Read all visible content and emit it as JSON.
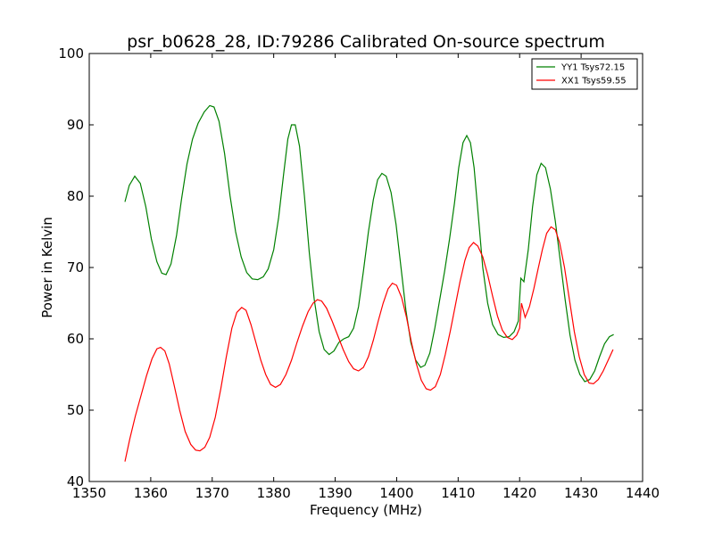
{
  "chart_data": {
    "type": "line",
    "title": "psr_b0628_28, ID:79286 Calibrated On-source spectrum",
    "xlabel": "Frequency (MHz)",
    "ylabel": "Power in Kelvin",
    "xlim": [
      1350,
      1440
    ],
    "ylim": [
      40,
      100
    ],
    "xticks": [
      "1350",
      "1360",
      "1370",
      "1380",
      "1390",
      "1400",
      "1410",
      "1420",
      "1430",
      "1440"
    ],
    "yticks": [
      "40",
      "50",
      "60",
      "70",
      "80",
      "90",
      "100"
    ],
    "grid": false,
    "legend_position": "top-right",
    "series": [
      {
        "name": "YY1 Tsys72.15",
        "color": "#008000",
        "points": [
          [
            1355.8,
            79.2
          ],
          [
            1356.5,
            81.5
          ],
          [
            1357.4,
            82.8
          ],
          [
            1358.3,
            81.8
          ],
          [
            1359.2,
            78.5
          ],
          [
            1360.1,
            74.0
          ],
          [
            1361.0,
            70.8
          ],
          [
            1361.8,
            69.2
          ],
          [
            1362.5,
            69.0
          ],
          [
            1363.3,
            70.5
          ],
          [
            1364.2,
            74.5
          ],
          [
            1365.0,
            79.5
          ],
          [
            1365.9,
            84.5
          ],
          [
            1366.8,
            88.0
          ],
          [
            1367.7,
            90.2
          ],
          [
            1368.7,
            91.8
          ],
          [
            1369.6,
            92.7
          ],
          [
            1370.3,
            92.5
          ],
          [
            1371.1,
            90.5
          ],
          [
            1372.0,
            86.0
          ],
          [
            1372.9,
            80.0
          ],
          [
            1373.8,
            75.0
          ],
          [
            1374.7,
            71.5
          ],
          [
            1375.6,
            69.3
          ],
          [
            1376.5,
            68.4
          ],
          [
            1377.4,
            68.3
          ],
          [
            1378.3,
            68.7
          ],
          [
            1379.1,
            69.8
          ],
          [
            1380.0,
            72.5
          ],
          [
            1380.8,
            77.0
          ],
          [
            1381.6,
            83.0
          ],
          [
            1382.3,
            88.0
          ],
          [
            1382.9,
            90.0
          ],
          [
            1383.5,
            90.0
          ],
          [
            1384.2,
            87.0
          ],
          [
            1385.0,
            80.0
          ],
          [
            1385.8,
            72.0
          ],
          [
            1386.6,
            65.5
          ],
          [
            1387.4,
            61.0
          ],
          [
            1388.2,
            58.5
          ],
          [
            1389.0,
            57.8
          ],
          [
            1389.8,
            58.3
          ],
          [
            1390.6,
            59.5
          ],
          [
            1391.4,
            60.0
          ],
          [
            1392.2,
            60.3
          ],
          [
            1393.0,
            61.5
          ],
          [
            1393.8,
            64.5
          ],
          [
            1394.6,
            69.5
          ],
          [
            1395.4,
            75.0
          ],
          [
            1396.2,
            79.5
          ],
          [
            1396.9,
            82.3
          ],
          [
            1397.6,
            83.2
          ],
          [
            1398.3,
            82.8
          ],
          [
            1399.1,
            80.5
          ],
          [
            1399.9,
            76.0
          ],
          [
            1400.7,
            70.0
          ],
          [
            1401.5,
            64.0
          ],
          [
            1402.3,
            59.5
          ],
          [
            1403.1,
            57.0
          ],
          [
            1403.9,
            56.0
          ],
          [
            1404.6,
            56.3
          ],
          [
            1405.4,
            58.0
          ],
          [
            1406.2,
            61.5
          ],
          [
            1407.0,
            65.5
          ],
          [
            1407.8,
            69.5
          ],
          [
            1408.6,
            74.0
          ],
          [
            1409.4,
            79.0
          ],
          [
            1410.1,
            84.0
          ],
          [
            1410.8,
            87.5
          ],
          [
            1411.4,
            88.5
          ],
          [
            1412.0,
            87.5
          ],
          [
            1412.6,
            84.0
          ],
          [
            1413.3,
            77.0
          ],
          [
            1414.0,
            70.0
          ],
          [
            1414.8,
            65.0
          ],
          [
            1415.6,
            62.0
          ],
          [
            1416.5,
            60.6
          ],
          [
            1417.4,
            60.2
          ],
          [
            1418.3,
            60.3
          ],
          [
            1419.1,
            61.0
          ],
          [
            1419.8,
            62.5
          ],
          [
            1420.2,
            68.5
          ],
          [
            1420.7,
            68.0
          ],
          [
            1421.4,
            72.5
          ],
          [
            1422.1,
            78.5
          ],
          [
            1422.8,
            83.0
          ],
          [
            1423.5,
            84.6
          ],
          [
            1424.2,
            84.0
          ],
          [
            1425.0,
            81.0
          ],
          [
            1425.8,
            76.5
          ],
          [
            1426.6,
            71.0
          ],
          [
            1427.4,
            65.5
          ],
          [
            1428.2,
            60.5
          ],
          [
            1429.0,
            57.0
          ],
          [
            1429.8,
            55.0
          ],
          [
            1430.6,
            54.0
          ],
          [
            1431.4,
            54.3
          ],
          [
            1432.2,
            55.5
          ],
          [
            1433.0,
            57.5
          ],
          [
            1433.8,
            59.3
          ],
          [
            1434.6,
            60.3
          ],
          [
            1435.3,
            60.6
          ]
        ]
      },
      {
        "name": "XX1 Tsys59.55",
        "color": "#ff0000",
        "points": [
          [
            1355.8,
            42.8
          ],
          [
            1356.6,
            46.0
          ],
          [
            1357.5,
            49.2
          ],
          [
            1358.4,
            52.0
          ],
          [
            1359.3,
            54.8
          ],
          [
            1360.2,
            57.2
          ],
          [
            1361.0,
            58.6
          ],
          [
            1361.6,
            58.8
          ],
          [
            1362.3,
            58.3
          ],
          [
            1363.0,
            56.5
          ],
          [
            1363.8,
            53.5
          ],
          [
            1364.7,
            50.0
          ],
          [
            1365.6,
            47.0
          ],
          [
            1366.5,
            45.2
          ],
          [
            1367.3,
            44.4
          ],
          [
            1368.0,
            44.3
          ],
          [
            1368.8,
            44.8
          ],
          [
            1369.6,
            46.2
          ],
          [
            1370.5,
            49.0
          ],
          [
            1371.4,
            53.0
          ],
          [
            1372.3,
            57.5
          ],
          [
            1373.2,
            61.5
          ],
          [
            1374.0,
            63.7
          ],
          [
            1374.8,
            64.4
          ],
          [
            1375.5,
            64.0
          ],
          [
            1376.3,
            62.0
          ],
          [
            1377.1,
            59.5
          ],
          [
            1377.9,
            57.0
          ],
          [
            1378.7,
            55.0
          ],
          [
            1379.5,
            53.6
          ],
          [
            1380.3,
            53.2
          ],
          [
            1381.1,
            53.6
          ],
          [
            1382.0,
            55.0
          ],
          [
            1382.9,
            57.0
          ],
          [
            1383.8,
            59.5
          ],
          [
            1384.7,
            61.8
          ],
          [
            1385.6,
            63.8
          ],
          [
            1386.4,
            65.0
          ],
          [
            1387.1,
            65.5
          ],
          [
            1387.8,
            65.3
          ],
          [
            1388.6,
            64.3
          ],
          [
            1389.5,
            62.5
          ],
          [
            1390.4,
            60.5
          ],
          [
            1391.3,
            58.5
          ],
          [
            1392.2,
            56.8
          ],
          [
            1393.0,
            55.8
          ],
          [
            1393.8,
            55.5
          ],
          [
            1394.6,
            56.0
          ],
          [
            1395.4,
            57.5
          ],
          [
            1396.2,
            59.8
          ],
          [
            1397.0,
            62.5
          ],
          [
            1397.8,
            65.0
          ],
          [
            1398.6,
            67.0
          ],
          [
            1399.3,
            67.8
          ],
          [
            1400.0,
            67.5
          ],
          [
            1400.8,
            65.8
          ],
          [
            1401.6,
            63.0
          ],
          [
            1402.4,
            59.5
          ],
          [
            1403.2,
            56.5
          ],
          [
            1404.0,
            54.2
          ],
          [
            1404.8,
            53.0
          ],
          [
            1405.5,
            52.8
          ],
          [
            1406.3,
            53.3
          ],
          [
            1407.1,
            55.0
          ],
          [
            1407.9,
            57.8
          ],
          [
            1408.7,
            61.0
          ],
          [
            1409.5,
            64.5
          ],
          [
            1410.3,
            68.0
          ],
          [
            1411.1,
            71.0
          ],
          [
            1411.8,
            72.8
          ],
          [
            1412.5,
            73.5
          ],
          [
            1413.2,
            73.0
          ],
          [
            1414.0,
            71.5
          ],
          [
            1414.8,
            69.0
          ],
          [
            1415.6,
            66.0
          ],
          [
            1416.4,
            63.2
          ],
          [
            1417.2,
            61.2
          ],
          [
            1418.0,
            60.2
          ],
          [
            1418.8,
            59.9
          ],
          [
            1419.5,
            60.5
          ],
          [
            1420.0,
            61.5
          ],
          [
            1420.3,
            65.0
          ],
          [
            1420.9,
            63.0
          ],
          [
            1421.6,
            64.5
          ],
          [
            1422.3,
            67.0
          ],
          [
            1423.0,
            69.8
          ],
          [
            1423.7,
            72.5
          ],
          [
            1424.4,
            74.8
          ],
          [
            1425.1,
            75.7
          ],
          [
            1425.8,
            75.3
          ],
          [
            1426.5,
            73.5
          ],
          [
            1427.3,
            70.0
          ],
          [
            1428.1,
            65.5
          ],
          [
            1428.9,
            61.0
          ],
          [
            1429.7,
            57.5
          ],
          [
            1430.5,
            55.0
          ],
          [
            1431.3,
            53.8
          ],
          [
            1432.0,
            53.7
          ],
          [
            1432.8,
            54.3
          ],
          [
            1433.6,
            55.5
          ],
          [
            1434.4,
            57.0
          ],
          [
            1435.2,
            58.5
          ]
        ]
      }
    ]
  }
}
